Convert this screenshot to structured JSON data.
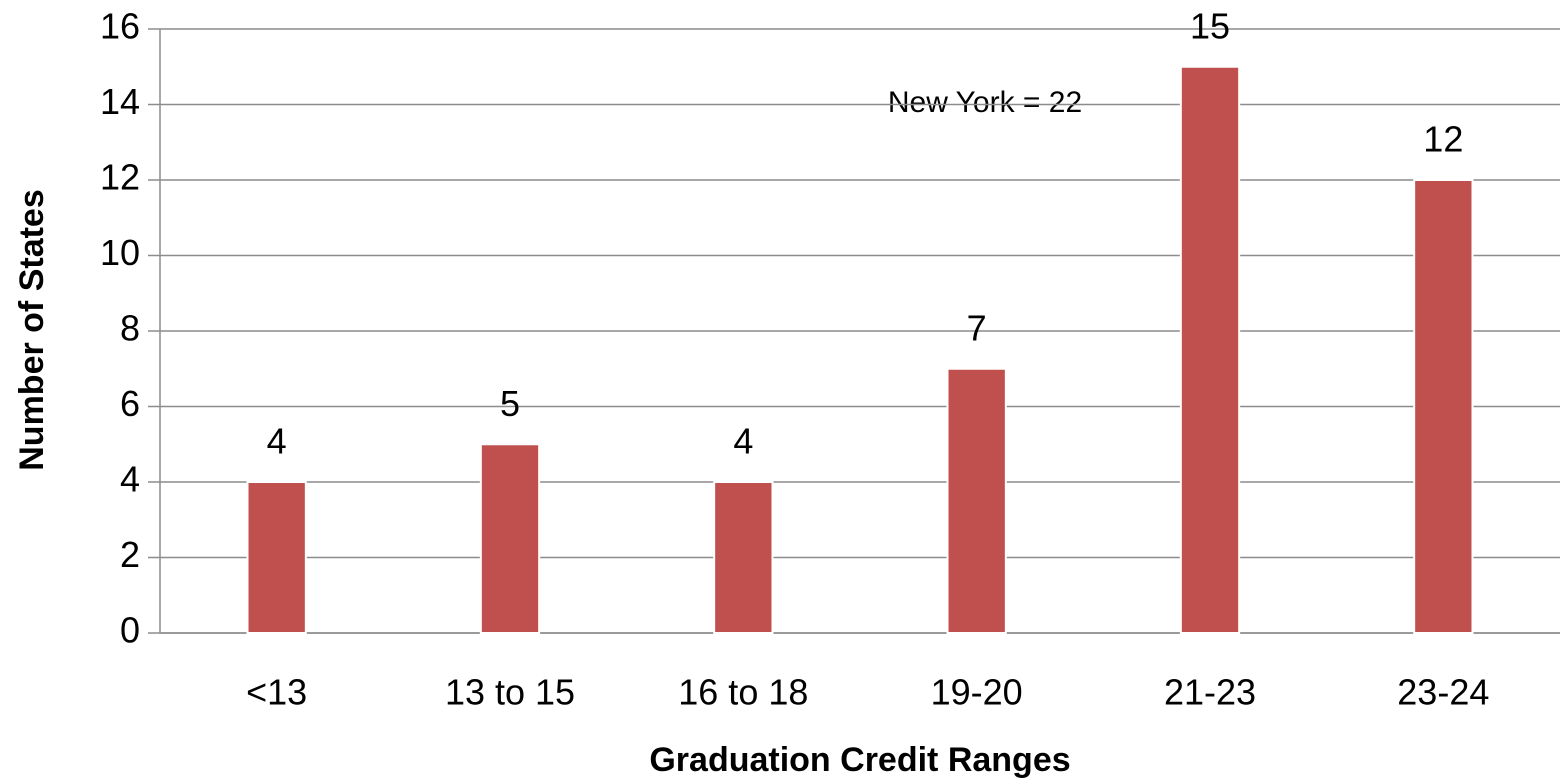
{
  "chart_data": {
    "type": "bar",
    "x_label": "Graduation Credit Ranges",
    "y_label": "Number of States",
    "annotation": "New York = 22",
    "categories": [
      "<13",
      "13 to 15",
      "16 to 18",
      "19-20",
      "21-23",
      "23-24"
    ],
    "values": [
      4,
      5,
      4,
      7,
      15,
      12
    ],
    "color": "#c0504d",
    "ylim": [
      0,
      16
    ],
    "yticks": [
      0,
      2,
      4,
      6,
      8,
      10,
      12,
      14,
      16
    ],
    "grid": true
  }
}
